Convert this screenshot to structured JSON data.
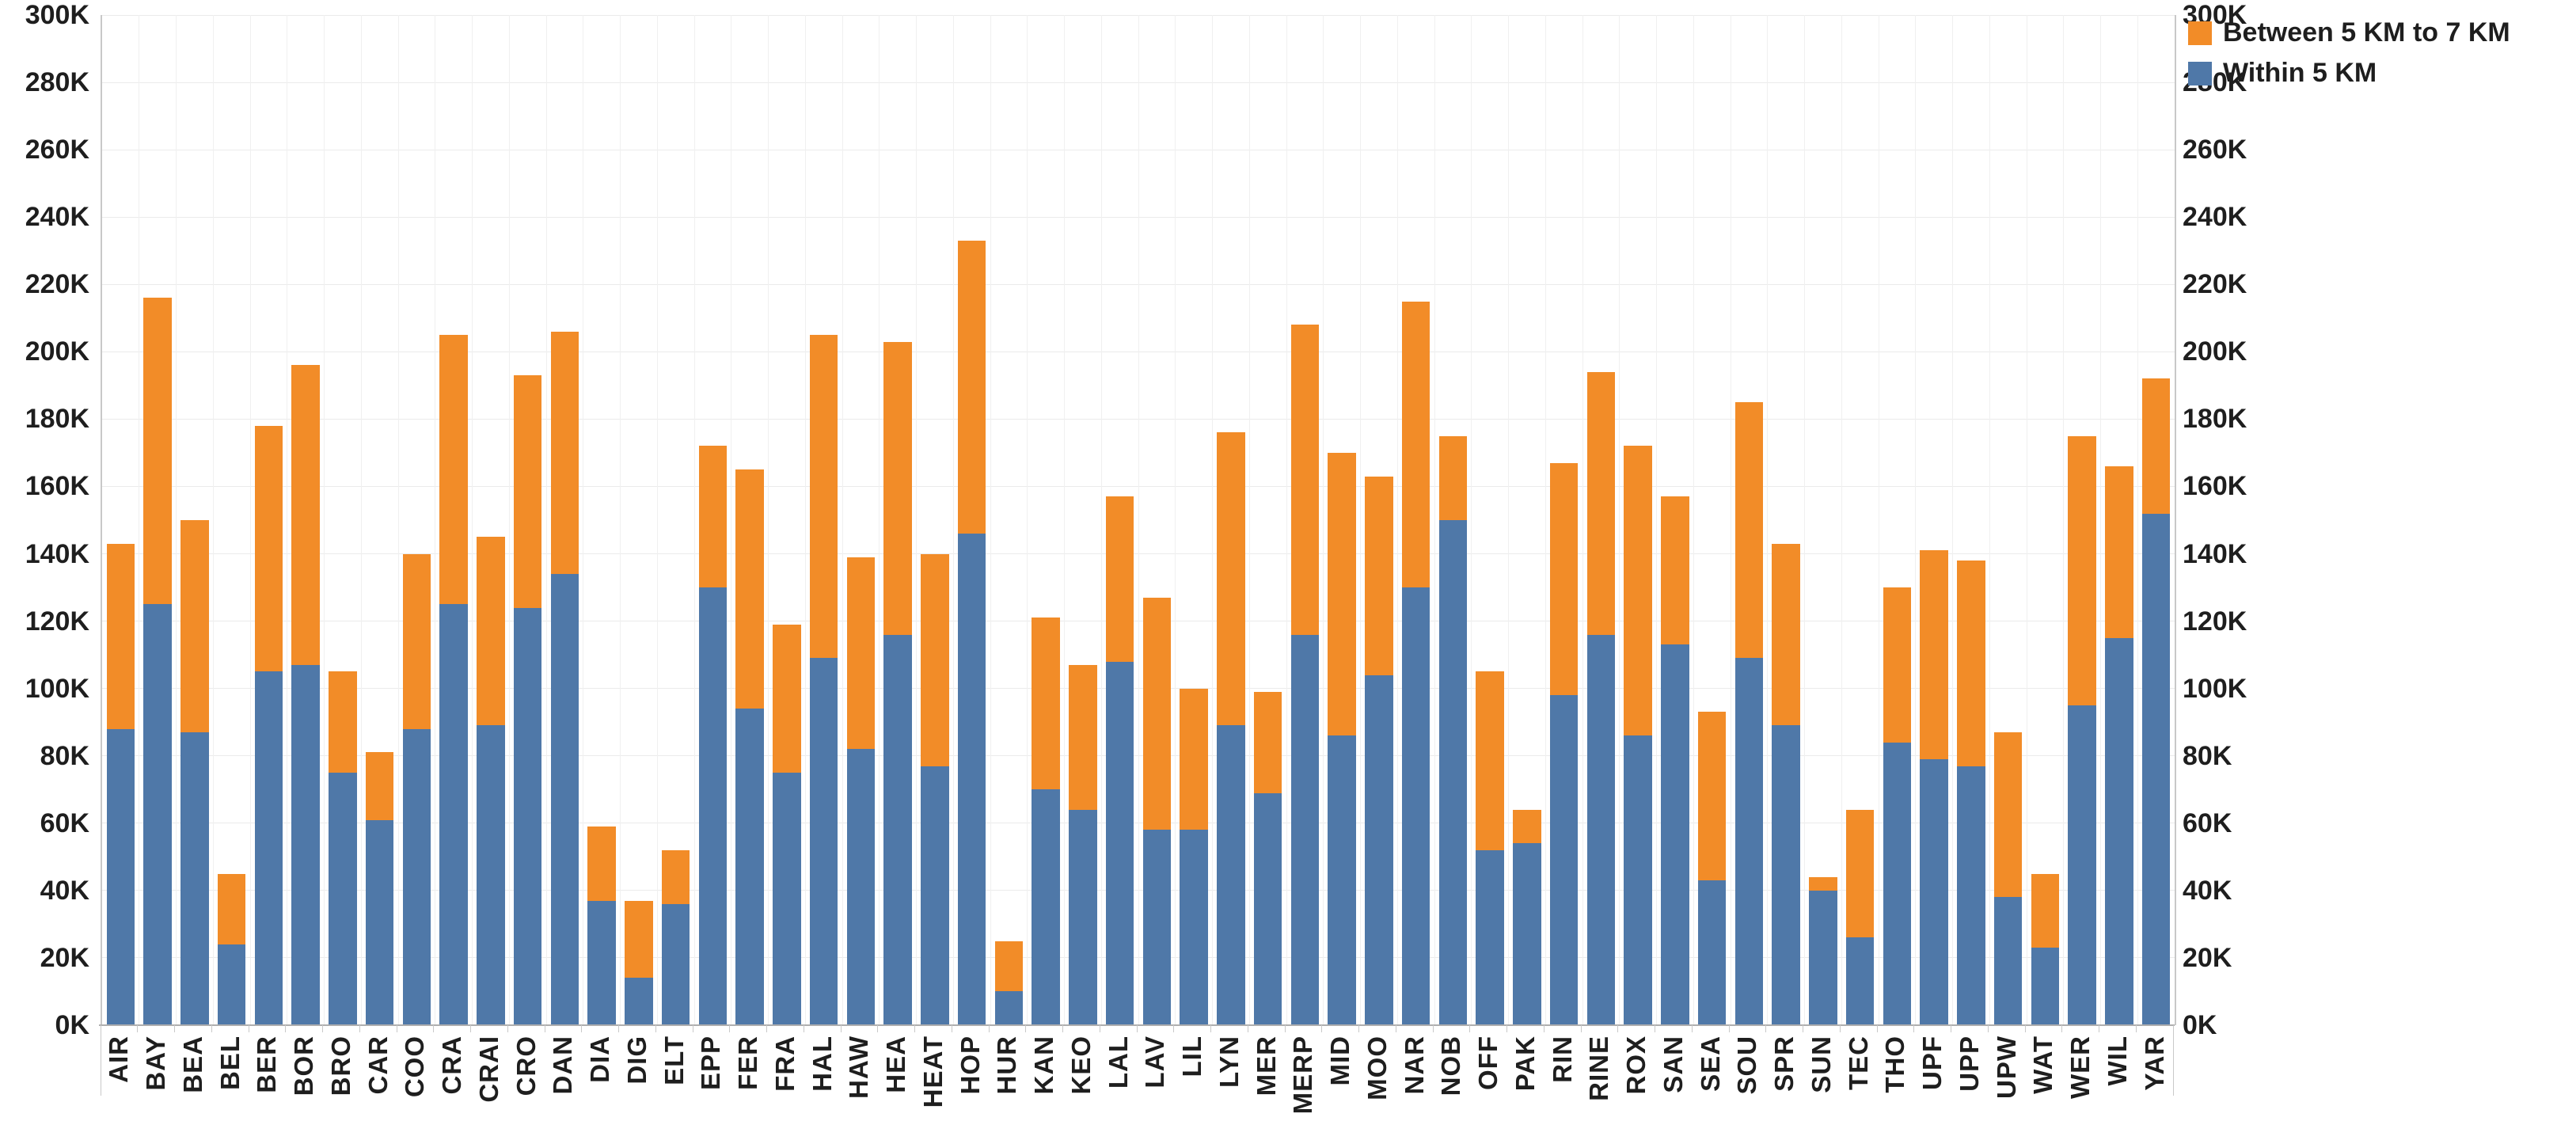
{
  "chart_data": {
    "type": "bar",
    "stacked": true,
    "title": "",
    "xlabel": "",
    "ylabel": "",
    "value_unit": "K",
    "ylim": [
      0,
      300
    ],
    "ytick_step": 20,
    "ytick_labels": [
      "0K",
      "20K",
      "40K",
      "60K",
      "80K",
      "100K",
      "120K",
      "140K",
      "160K",
      "180K",
      "200K",
      "220K",
      "240K",
      "260K",
      "280K",
      "300K"
    ],
    "grid": true,
    "dual_axis_labels": true,
    "legend_position": "top-right",
    "categories": [
      "AIR",
      "BAY",
      "BEA",
      "BEL",
      "BER",
      "BOR",
      "BRO",
      "CAR",
      "COO",
      "CRA",
      "CRAI",
      "CRO",
      "DAN",
      "DIA",
      "DIG",
      "ELT",
      "EPP",
      "FER",
      "FRA",
      "HAL",
      "HAW",
      "HEA",
      "HEAT",
      "HOP",
      "HUR",
      "KAN",
      "KEO",
      "LAL",
      "LAV",
      "LIL",
      "LYN",
      "MER",
      "MERP",
      "MID",
      "MOO",
      "NAR",
      "NOB",
      "OFF",
      "PAK",
      "RIN",
      "RINE",
      "ROX",
      "SAN",
      "SEA",
      "SOU",
      "SPR",
      "SUN",
      "TEC",
      "THO",
      "UPF",
      "UPP",
      "UPW",
      "WAT",
      "WER",
      "WIL",
      "YAR"
    ],
    "series": [
      {
        "name": "Within 5 KM",
        "color": "#4F78A8",
        "values": [
          88,
          125,
          87,
          24,
          105,
          107,
          75,
          61,
          88,
          125,
          89,
          124,
          134,
          37,
          14,
          36,
          130,
          94,
          75,
          109,
          82,
          116,
          77,
          146,
          10,
          70,
          64,
          108,
          58,
          58,
          89,
          69,
          116,
          86,
          104,
          130,
          150,
          52,
          54,
          98,
          116,
          86,
          113,
          43,
          109,
          89,
          40,
          26,
          84,
          79,
          77,
          38,
          23,
          95,
          115,
          152
        ]
      },
      {
        "name": "Between 5 KM to 7 KM",
        "color": "#F28C28",
        "values": [
          55,
          91,
          63,
          21,
          73,
          89,
          30,
          20,
          52,
          80,
          56,
          69,
          72,
          22,
          23,
          16,
          42,
          71,
          44,
          96,
          57,
          87,
          63,
          87,
          15,
          51,
          43,
          49,
          69,
          42,
          87,
          30,
          92,
          84,
          59,
          85,
          25,
          53,
          10,
          69,
          78,
          86,
          44,
          50,
          76,
          54,
          4,
          38,
          46,
          62,
          61,
          49,
          22,
          80,
          51,
          40
        ]
      }
    ],
    "legend": [
      {
        "label": "Between 5 KM to 7 KM",
        "color": "#F28C28"
      },
      {
        "label": "Within 5 KM",
        "color": "#4F78A8"
      }
    ]
  }
}
